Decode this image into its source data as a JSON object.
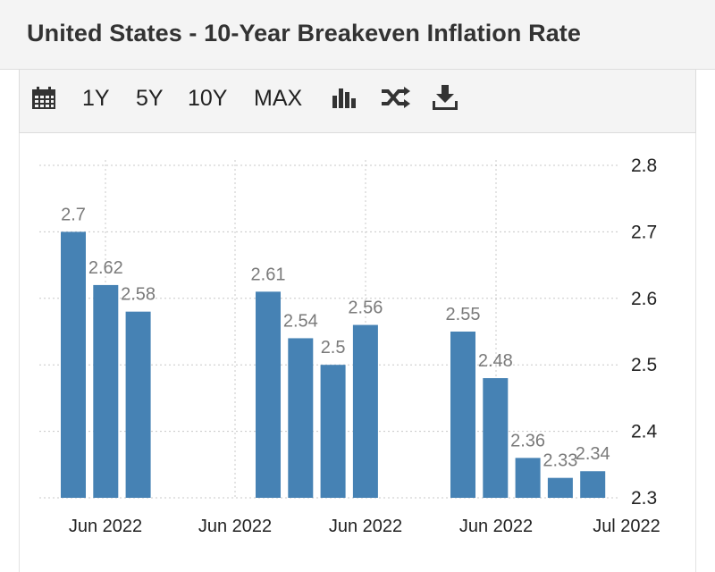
{
  "header": {
    "title": "United States - 10-Year Breakeven Inflation Rate"
  },
  "toolbar": {
    "icons": {
      "calendar": "calendar-icon",
      "bar": "bar-chart-icon",
      "shuffle": "shuffle-icon",
      "download": "download-icon"
    },
    "ranges": [
      "1Y",
      "5Y",
      "10Y",
      "MAX"
    ]
  },
  "colors": {
    "bar": "#4682b4",
    "grid": "#c8c8c8"
  },
  "chart_data": {
    "type": "bar",
    "title": "United States - 10-Year Breakeven Inflation Rate",
    "xlabel": "",
    "ylabel": "",
    "ylim": [
      2.3,
      2.8
    ],
    "yticks": [
      "2.8",
      "2.7",
      "2.6",
      "2.5",
      "2.4",
      "2.3"
    ],
    "xtick_labels": [
      "Jun 2022",
      "Jun 2022",
      "Jun 2022",
      "Jun 2022",
      "Jul 2022"
    ],
    "grid": true,
    "groups": [
      {
        "values": [
          2.7,
          2.62,
          2.58
        ],
        "labels": [
          "2.7",
          "2.62",
          "2.58"
        ]
      },
      {
        "values": [
          2.61,
          2.54,
          2.5,
          2.56
        ],
        "labels": [
          "2.61",
          "2.54",
          "2.5",
          "2.56"
        ]
      },
      {
        "values": [
          2.55,
          2.48,
          2.36,
          2.33,
          2.34
        ],
        "labels": [
          "2.55",
          "2.48",
          "2.36",
          "2.33",
          "2.34"
        ]
      }
    ]
  }
}
